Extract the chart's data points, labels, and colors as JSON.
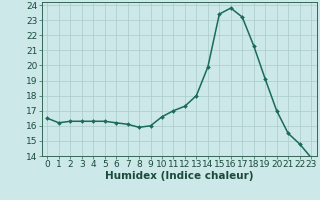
{
  "x": [
    0,
    1,
    2,
    3,
    4,
    5,
    6,
    7,
    8,
    9,
    10,
    11,
    12,
    13,
    14,
    15,
    16,
    17,
    18,
    19,
    20,
    21,
    22,
    23
  ],
  "y": [
    16.5,
    16.2,
    16.3,
    16.3,
    16.3,
    16.3,
    16.2,
    16.1,
    15.9,
    16.0,
    16.6,
    17.0,
    17.3,
    18.0,
    19.9,
    23.4,
    23.8,
    23.2,
    21.3,
    19.1,
    17.0,
    15.5,
    14.8,
    13.9
  ],
  "xlabel": "Humidex (Indice chaleur)",
  "ylim": [
    14,
    24.2
  ],
  "xlim": [
    -0.5,
    23.5
  ],
  "yticks": [
    14,
    15,
    16,
    17,
    18,
    19,
    20,
    21,
    22,
    23,
    24
  ],
  "xticks": [
    0,
    1,
    2,
    3,
    4,
    5,
    6,
    7,
    8,
    9,
    10,
    11,
    12,
    13,
    14,
    15,
    16,
    17,
    18,
    19,
    20,
    21,
    22,
    23
  ],
  "line_color": "#1a6b5a",
  "marker": "D",
  "marker_size": 2.0,
  "bg_color": "#cce8e8",
  "grid_color": "#aacccc",
  "axis_color": "#336655",
  "tick_label_color": "#1a4a3a",
  "xlabel_color": "#1a4a3a",
  "xlabel_fontsize": 7.5,
  "tick_fontsize": 6.5,
  "linewidth": 1.1
}
